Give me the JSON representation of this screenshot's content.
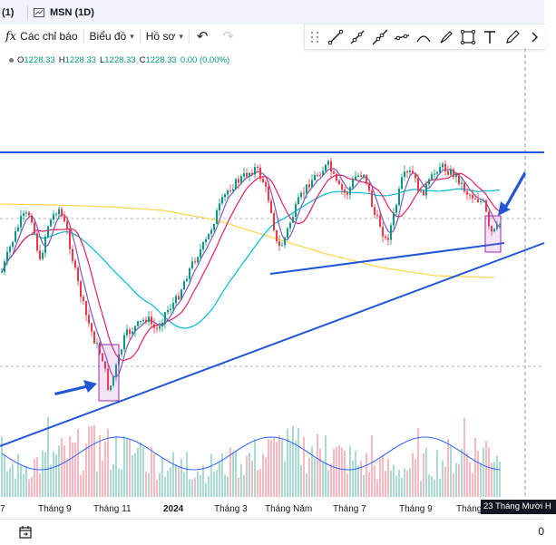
{
  "tabs": {
    "prev_tab": "(1)",
    "symbol_tab": "MSN (1D)"
  },
  "toolbar": {
    "indicators_label": "Các chỉ báo",
    "chart_type_label": "Biểu đồ",
    "layout_label": "Hồ sơ",
    "undo_icon": "undo-icon",
    "redo_icon": "redo-icon"
  },
  "drawing_tools": [
    "trend-line-icon",
    "ray-icon",
    "extended-line-icon",
    "info-line-icon",
    "curve-icon",
    "brush-icon",
    "rectangle-icon",
    "text-icon",
    "pen-icon",
    "chevron-right-icon"
  ],
  "legend": {
    "o_label": "O",
    "o": "1228.33",
    "h_label": "H",
    "h": "1228.33",
    "l_label": "L",
    "l": "1228.33",
    "c_label": "C",
    "c": "1228.33",
    "change": "0.00 (0.00%)"
  },
  "colors": {
    "candle_up": "#089981",
    "candle_down": "#f23645",
    "trendline": "#2157d6",
    "ma_fast": "#7e57c2",
    "ma_mid": "#e91e63",
    "ma_slow": "#00bcd4",
    "ma_long": "#ffd54f",
    "volume_ma": "#2962ff"
  },
  "x_axis": {
    "labels": [
      "7",
      "Tháng 9",
      "Tháng 11",
      "2024",
      "Tháng 3",
      "Tháng Năm",
      "Tháng 7",
      "Tháng 9",
      "Tháng"
    ],
    "crosshair_label": "23 Tháng Mười H"
  },
  "bottom": {
    "calendar_icon": "calendar-goto-icon",
    "range_label": "0"
  }
}
